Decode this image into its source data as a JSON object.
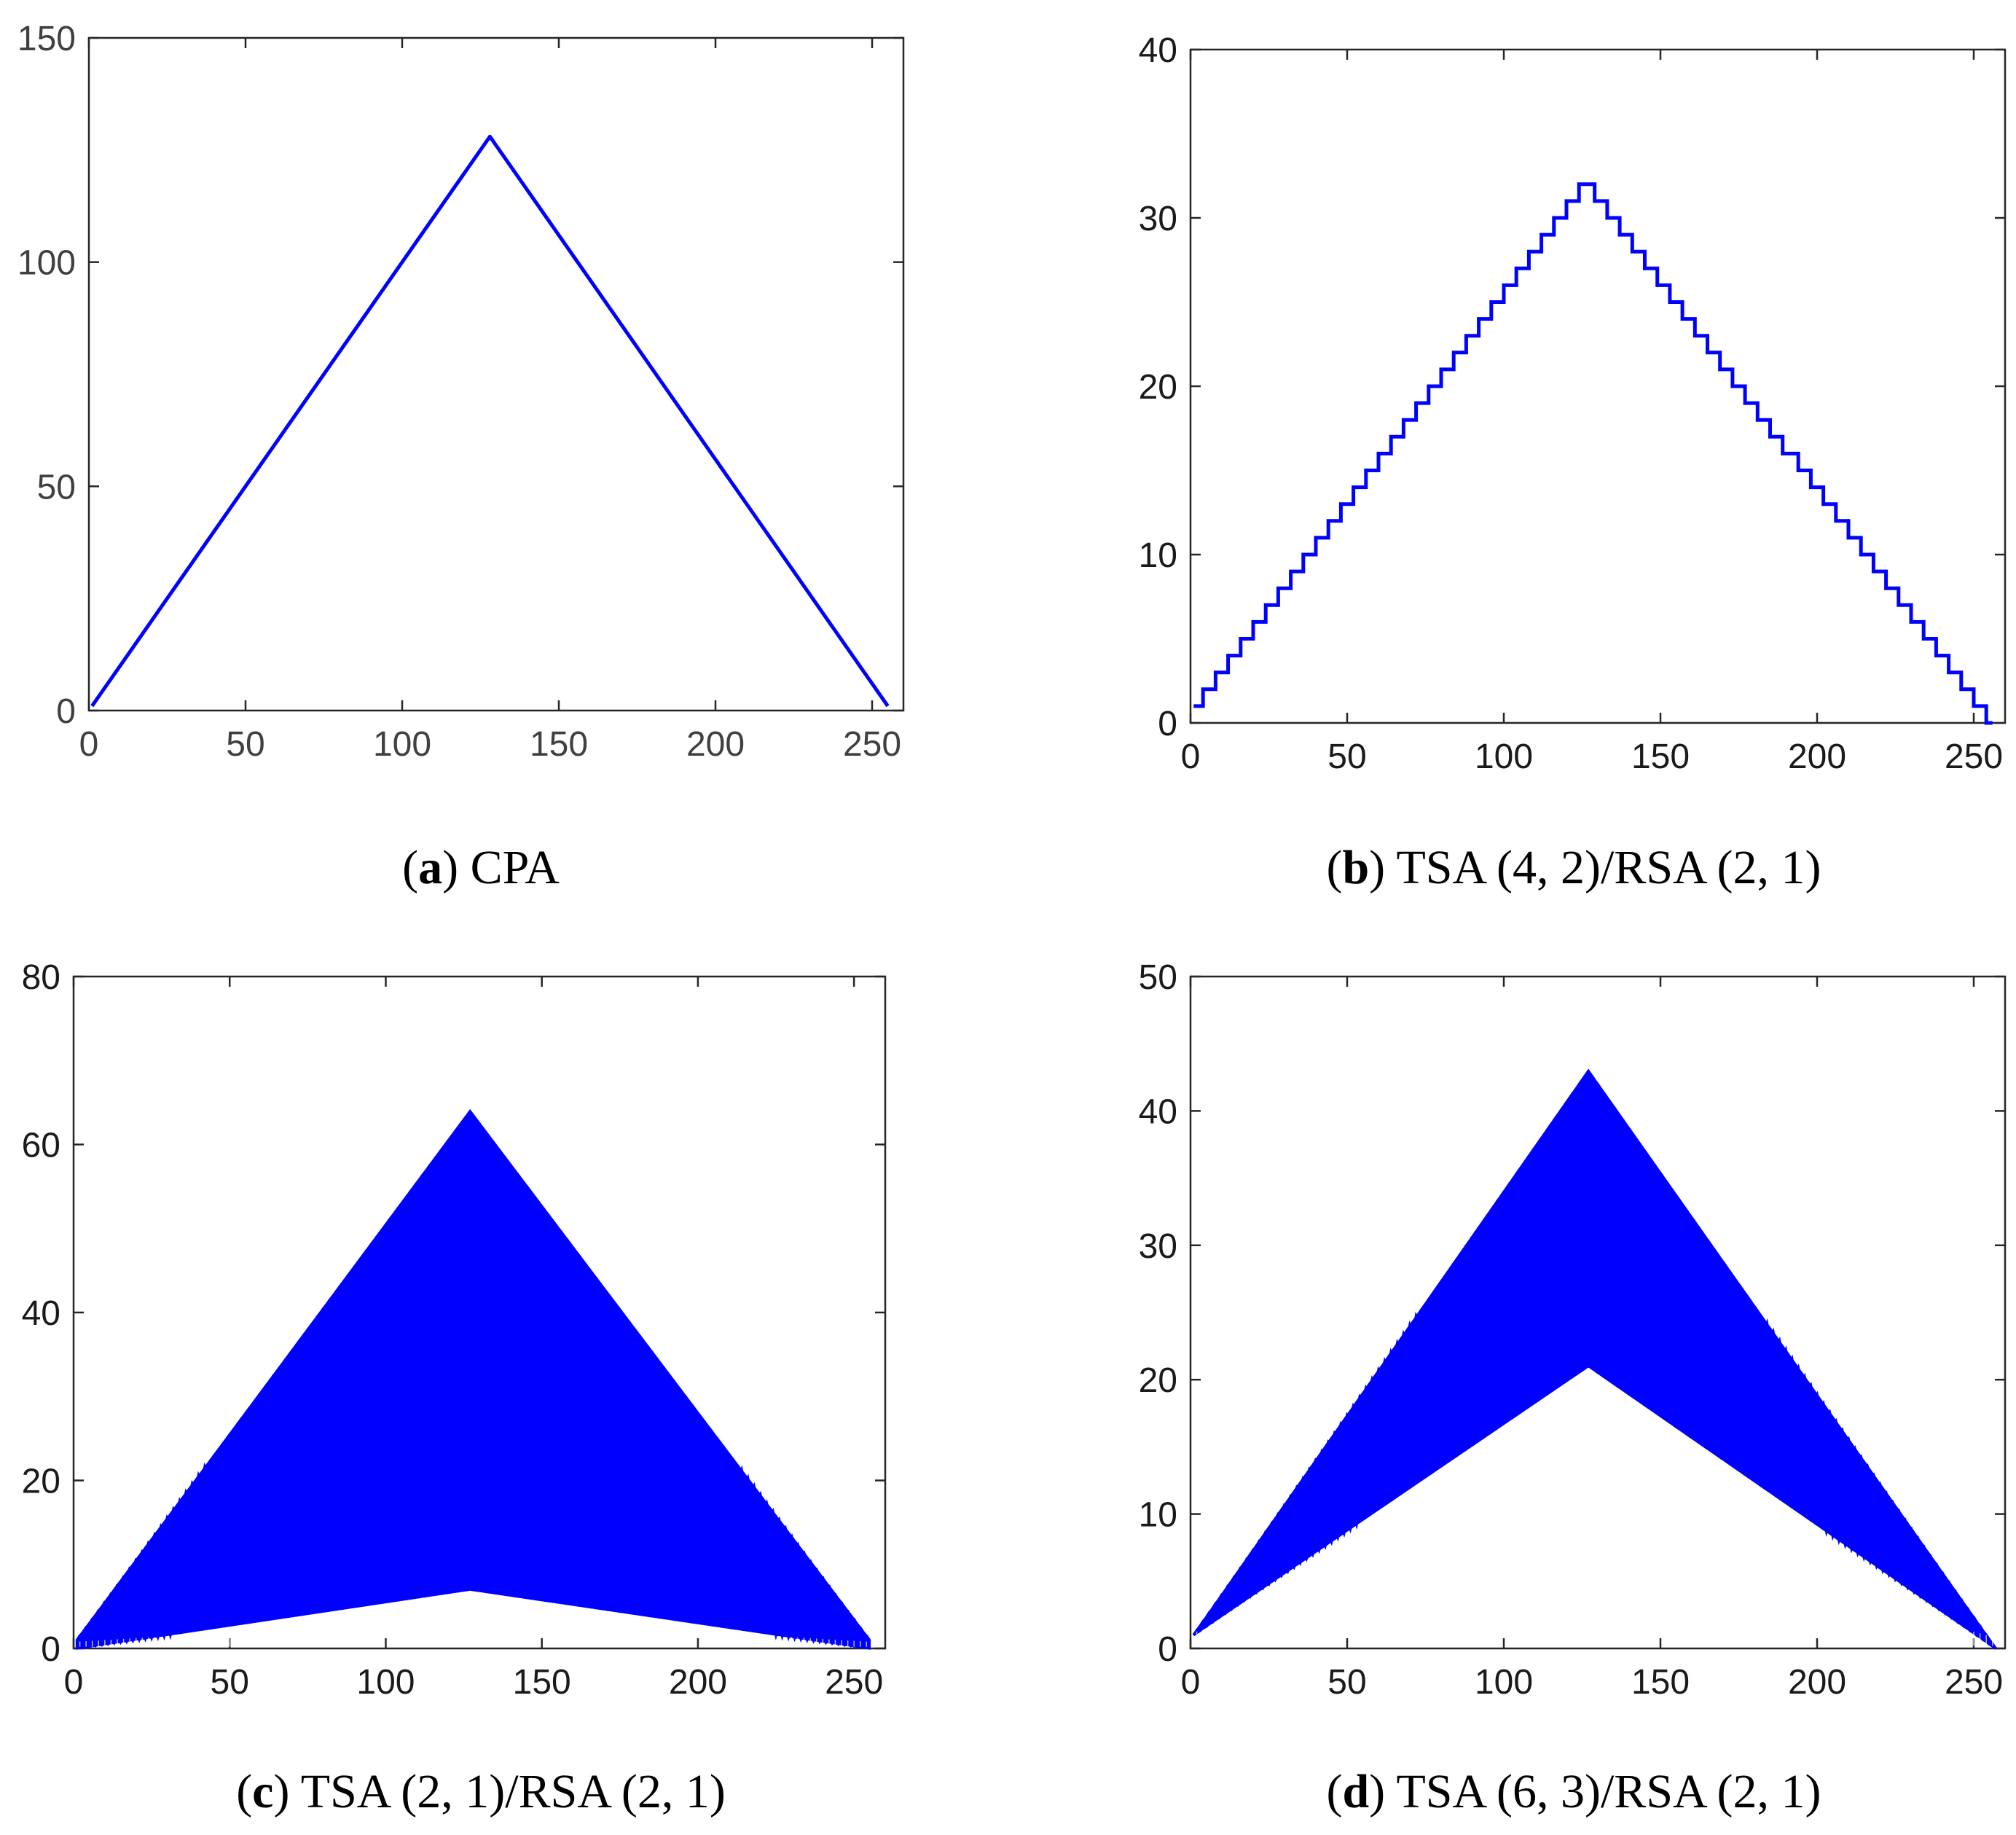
{
  "chart_data": [
    {
      "id": "a",
      "type": "line",
      "caption_letter": "a",
      "caption_text": "CPA",
      "xlim": [
        0,
        260
      ],
      "ylim": [
        0,
        150
      ],
      "xticks": [
        0,
        50,
        100,
        150,
        200,
        250
      ],
      "yticks": [
        0,
        50,
        100,
        150
      ],
      "line_color": "#0000ff",
      "series": [
        {
          "name": "CPA",
          "style": "line",
          "x": [
            1,
            128,
            255
          ],
          "y": [
            1,
            128,
            1
          ]
        }
      ]
    },
    {
      "id": "b",
      "type": "line",
      "caption_letter": "b",
      "caption_text": "TSA (4, 2)/RSA (2, 1)",
      "xlim": [
        0,
        260
      ],
      "ylim": [
        0,
        40
      ],
      "xticks": [
        0,
        50,
        100,
        150,
        200,
        250
      ],
      "yticks": [
        0,
        10,
        20,
        30,
        40
      ],
      "line_color": "#0000ff",
      "series": [
        {
          "name": "TSA (4, 2)/RSA (2, 1)",
          "style": "staircase",
          "step_width": 4,
          "start_x": 1,
          "end_x": 256,
          "start_y": 1,
          "peak_x": 126,
          "peak_y": 32,
          "end_y": 0
        }
      ]
    },
    {
      "id": "c",
      "type": "line",
      "caption_letter": "c",
      "caption_text": "TSA (2, 1)/RSA (2, 1)",
      "xlim": [
        0,
        260
      ],
      "ylim": [
        0,
        80
      ],
      "xticks": [
        0,
        50,
        100,
        150,
        200,
        250
      ],
      "yticks": [
        0,
        20,
        40,
        60,
        80
      ],
      "line_color": "#0000ff",
      "series": [
        {
          "name": "TSA (2, 1)/RSA (2, 1)",
          "style": "oscillating",
          "start_x": 1,
          "end_x": 255,
          "peak_x": 127,
          "upper": {
            "start_y": 1,
            "peak_y": 64,
            "end_y": 1
          },
          "lower": {
            "start_y": 0,
            "peak_y": 7,
            "end_y": 0
          },
          "spikes_per_unit": 1
        }
      ]
    },
    {
      "id": "d",
      "type": "line",
      "caption_letter": "d",
      "caption_text": "TSA (6, 3)/RSA (2, 1)",
      "xlim": [
        0,
        260
      ],
      "ylim": [
        0,
        50
      ],
      "xticks": [
        0,
        50,
        100,
        150,
        200,
        250
      ],
      "yticks": [
        0,
        10,
        20,
        30,
        40,
        50
      ],
      "line_color": "#0000ff",
      "series": [
        {
          "name": "TSA (6, 3)/RSA (2, 1)",
          "style": "oscillating",
          "start_x": 1,
          "end_x": 257,
          "peak_x": 127,
          "upper": {
            "start_y": 1,
            "peak_y": 43,
            "end_y": 0
          },
          "lower": {
            "start_y": 1,
            "peak_y": 21,
            "end_y": 0
          },
          "spikes_per_unit": 1
        }
      ]
    }
  ]
}
